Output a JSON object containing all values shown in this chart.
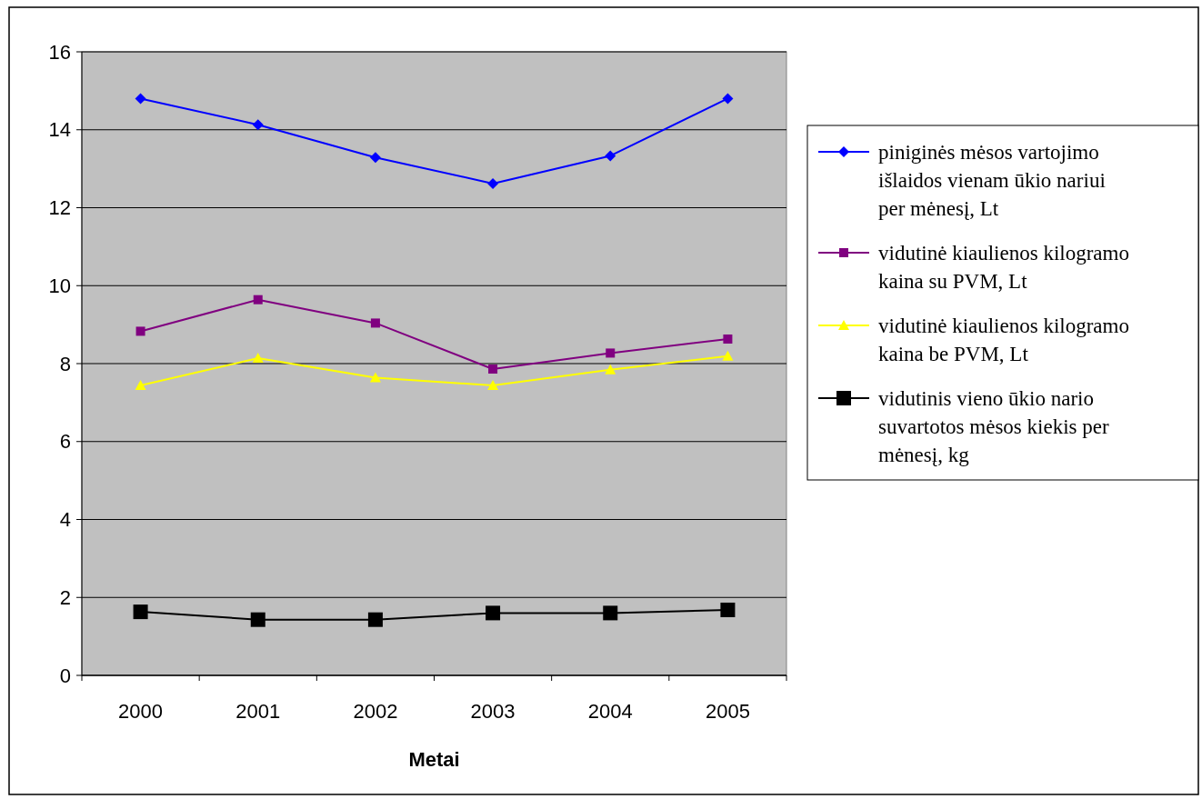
{
  "chart_data": {
    "type": "line",
    "xlabel": "Metai",
    "categories": [
      "2000",
      "2001",
      "2002",
      "2003",
      "2004",
      "2005"
    ],
    "ylim": [
      0,
      16
    ],
    "yticks": [
      0,
      2,
      4,
      6,
      8,
      10,
      12,
      14,
      16
    ],
    "grid": "y",
    "legend": "right",
    "series": [
      {
        "name": "piniginės mėsos vartojimo išlaidos vienam ūkio nariui per mėnesį, Lt",
        "color": "#0000ff",
        "marker": "diamond",
        "values": [
          14.8,
          14.13,
          13.29,
          12.62,
          13.33,
          14.8
        ]
      },
      {
        "name": "vidutinė kiaulienos kilogramo kaina su PVM, Lt",
        "color": "#800080",
        "marker": "square",
        "values": [
          8.83,
          9.64,
          9.04,
          7.86,
          8.27,
          8.63
        ]
      },
      {
        "name": "vidutinė kiaulienos kilogramo kaina be PVM, Lt",
        "color": "#ffff00",
        "marker": "triangle",
        "values": [
          7.44,
          8.14,
          7.64,
          7.44,
          7.84,
          8.19
        ]
      },
      {
        "name": "vidutinis vieno ūkio nario suvartotos mėsos kiekis per mėnesį, kg",
        "color": "#000000",
        "marker": "square",
        "values": [
          1.63,
          1.43,
          1.43,
          1.6,
          1.6,
          1.68
        ]
      }
    ]
  }
}
